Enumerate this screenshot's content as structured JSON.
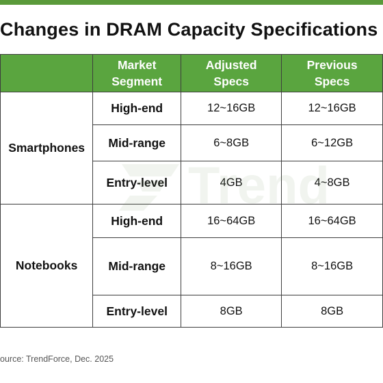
{
  "title": "Changes in DRAM Capacity Specifications f",
  "header": {
    "market_segment": "Market\nSegment",
    "adjusted_specs": "Adjusted\nSpecs",
    "previous_specs": "Previous\nSpecs"
  },
  "rows": [
    {
      "category": "Smartphones",
      "segments": [
        {
          "name": "High-end",
          "adjusted": "12~16GB",
          "previous": "12~16GB"
        },
        {
          "name": "Mid-range",
          "adjusted": "6~8GB",
          "previous": "6~12GB"
        },
        {
          "name": "Entry-level",
          "adjusted": "4GB",
          "previous": "4~8GB"
        }
      ]
    },
    {
      "category": "Notebooks",
      "segments": [
        {
          "name": "High-end",
          "adjusted": "16~64GB",
          "previous": "16~64GB"
        },
        {
          "name": "Mid-range",
          "adjusted": "8~16GB",
          "previous": "8~16GB"
        },
        {
          "name": "Entry-level",
          "adjusted": "8GB",
          "previous": "8GB"
        }
      ]
    }
  ],
  "watermark": "Trend",
  "source": "ource: TrendForce,  Dec. 2025",
  "colors": {
    "header_green": "#5aa53f",
    "top_bar_green": "#5a9a3a",
    "border": "#3d3d3d"
  }
}
